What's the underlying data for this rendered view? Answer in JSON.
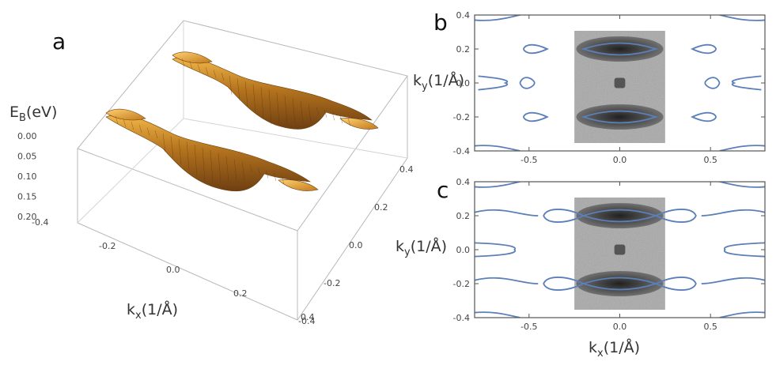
{
  "panels": {
    "a": "a",
    "b": "b",
    "c": "c"
  },
  "chart_data": [
    {
      "panel": "a",
      "type": "surface",
      "zlabel_main": "E",
      "zlabel_sub": "B",
      "zlabel_unit": "(eV)",
      "xlabel_main": "k",
      "xlabel_sub": "x",
      "xlabel_unit": "(1/Å)",
      "ylabel_main": "k",
      "ylabel_sub": "y",
      "ylabel_unit": "(1/Å)",
      "z_ticks": [
        "0.00",
        "0.05",
        "0.10",
        "0.15",
        "0.20"
      ],
      "x_ticks": [
        "-0.4",
        "-0.2",
        "0.0",
        "0.2",
        "0.4"
      ],
      "y_ticks": [
        "0.4",
        "0.2",
        "0.0",
        "-0.2",
        "-0.4"
      ],
      "xlim": [
        -0.4,
        0.4
      ],
      "ylim": [
        -0.4,
        0.4
      ],
      "zlim": [
        0.0,
        0.2
      ],
      "surface_color": "#d98a1a",
      "bands": [
        {
          "ky": 0.18,
          "depth_eV": 0.15,
          "neck_kx": [
            -0.28,
            0.28
          ]
        },
        {
          "ky": -0.18,
          "depth_eV": 0.15,
          "neck_kx": [
            -0.28,
            0.28
          ]
        }
      ]
    },
    {
      "panel": "b",
      "type": "contour",
      "xlim": [
        -0.8,
        0.8
      ],
      "ylim": [
        -0.4,
        0.4
      ],
      "x_ticks": [
        "-0.5",
        "0.0",
        "0.5"
      ],
      "x_tick_values": [
        -0.5,
        0.0,
        0.5
      ],
      "y_ticks": [
        "0.4",
        "0.2",
        "0.0",
        "-0.2",
        "-0.4"
      ],
      "y_tick_values": [
        0.4,
        0.2,
        0.0,
        -0.2,
        -0.4
      ],
      "contour_color": "#5b7fb8",
      "pockets": [
        {
          "kx": 0.0,
          "ky": 0.2,
          "half_width": 0.2,
          "half_height": 0.04,
          "closed": true
        },
        {
          "kx": 0.0,
          "ky": -0.2,
          "half_width": 0.2,
          "half_height": 0.04,
          "closed": true
        },
        {
          "kx": -0.45,
          "ky": 0.2,
          "half_width": 0.05,
          "half_height": 0.03,
          "closed": true
        },
        {
          "kx": 0.45,
          "ky": 0.2,
          "half_width": 0.05,
          "half_height": 0.03,
          "closed": true
        },
        {
          "kx": -0.45,
          "ky": -0.2,
          "half_width": 0.05,
          "half_height": 0.03,
          "closed": true
        },
        {
          "kx": 0.45,
          "ky": -0.2,
          "half_width": 0.05,
          "half_height": 0.03,
          "closed": true
        }
      ],
      "image_kx_range": [
        -0.25,
        0.25
      ],
      "image_ky_range": [
        -0.4,
        0.4
      ]
    },
    {
      "panel": "c",
      "type": "contour",
      "xlim": [
        -0.8,
        0.8
      ],
      "ylim": [
        -0.4,
        0.4
      ],
      "x_ticks": [
        "-0.5",
        "0.0",
        "0.5"
      ],
      "x_tick_values": [
        -0.5,
        0.0,
        0.5
      ],
      "y_ticks": [
        "0.4",
        "0.2",
        "0.0",
        "-0.2",
        "-0.4"
      ],
      "y_tick_values": [
        0.4,
        0.2,
        0.0,
        -0.2,
        -0.4
      ],
      "xlabel_main": "k",
      "xlabel_sub": "x",
      "xlabel_unit": "(1/Å)",
      "contour_color": "#5b7fb8",
      "image_kx_range": [
        -0.25,
        0.25
      ],
      "image_ky_range": [
        -0.4,
        0.4
      ]
    }
  ]
}
